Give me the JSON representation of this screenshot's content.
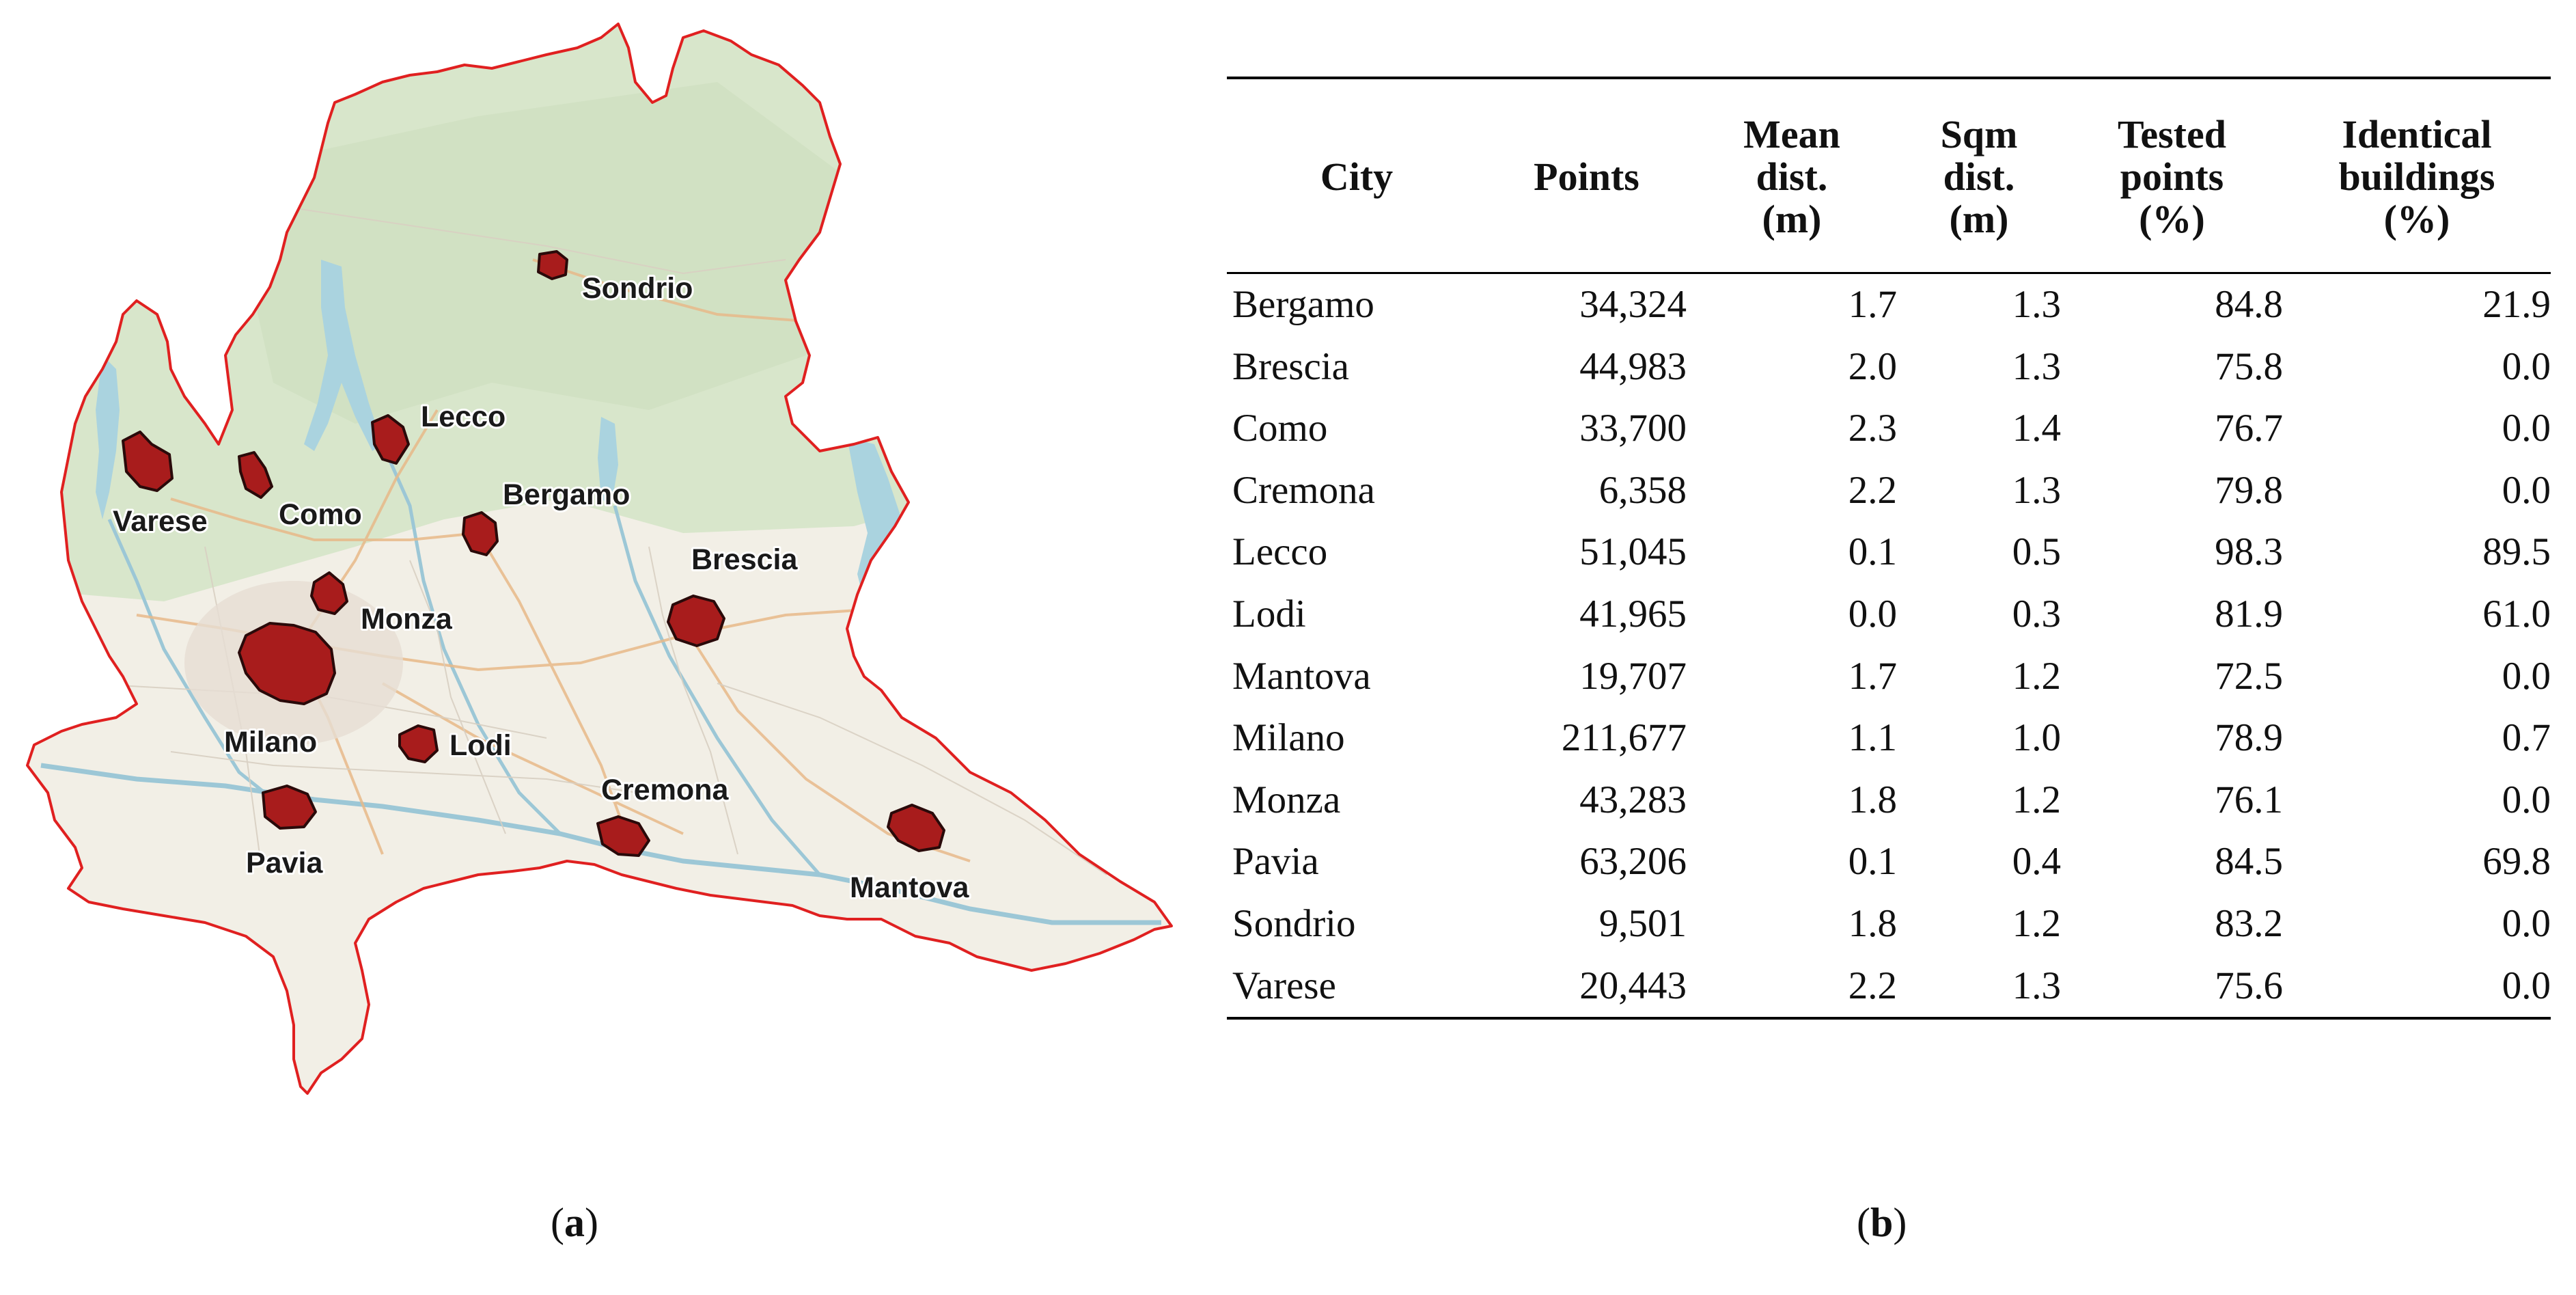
{
  "map": {
    "cities": [
      {
        "name": "Sondrio"
      },
      {
        "name": "Lecco"
      },
      {
        "name": "Varese"
      },
      {
        "name": "Como"
      },
      {
        "name": "Bergamo"
      },
      {
        "name": "Brescia"
      },
      {
        "name": "Monza"
      },
      {
        "name": "Milano"
      },
      {
        "name": "Lodi"
      },
      {
        "name": "Cremona"
      },
      {
        "name": "Pavia"
      },
      {
        "name": "Mantova"
      }
    ],
    "colors": {
      "boundary": "#e02020",
      "city_fill": "#a81c1c",
      "land": "#f2efe6",
      "mountains": "#dbe8cf",
      "water": "#aad3df"
    }
  },
  "table": {
    "headers": [
      [
        "City"
      ],
      [
        "Points"
      ],
      [
        "Mean",
        "dist.",
        "(m)"
      ],
      [
        "Sqm",
        "dist.",
        "(m)"
      ],
      [
        "Tested",
        "points",
        "(%)"
      ],
      [
        "Identical",
        "buildings",
        "(%)"
      ]
    ],
    "rows": [
      [
        "Bergamo",
        "34,324",
        "1.7",
        "1.3",
        "84.8",
        "21.9"
      ],
      [
        "Brescia",
        "44,983",
        "2.0",
        "1.3",
        "75.8",
        "0.0"
      ],
      [
        "Como",
        "33,700",
        "2.3",
        "1.4",
        "76.7",
        "0.0"
      ],
      [
        "Cremona",
        "6,358",
        "2.2",
        "1.3",
        "79.8",
        "0.0"
      ],
      [
        "Lecco",
        "51,045",
        "0.1",
        "0.5",
        "98.3",
        "89.5"
      ],
      [
        "Lodi",
        "41,965",
        "0.0",
        "0.3",
        "81.9",
        "61.0"
      ],
      [
        "Mantova",
        "19,707",
        "1.7",
        "1.2",
        "72.5",
        "0.0"
      ],
      [
        "Milano",
        "211,677",
        "1.1",
        "1.0",
        "78.9",
        "0.7"
      ],
      [
        "Monza",
        "43,283",
        "1.8",
        "1.2",
        "76.1",
        "0.0"
      ],
      [
        "Pavia",
        "63,206",
        "0.1",
        "0.4",
        "84.5",
        "69.8"
      ],
      [
        "Sondrio",
        "9,501",
        "1.8",
        "1.2",
        "83.2",
        "0.0"
      ],
      [
        "Varese",
        "20,443",
        "2.2",
        "1.3",
        "75.6",
        "0.0"
      ]
    ]
  },
  "captions": {
    "a": "a",
    "b": "b"
  }
}
